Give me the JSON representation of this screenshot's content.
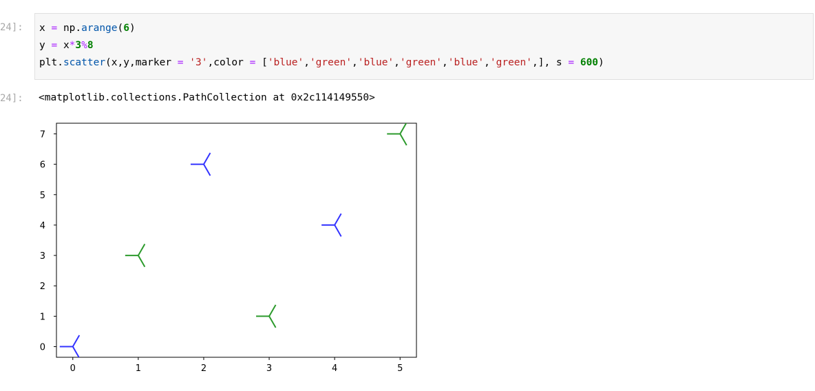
{
  "cell": {
    "in_prompt": "24]:",
    "out_prompt": "24]:",
    "code": {
      "line1": [
        "x",
        " = ",
        "np",
        ".",
        "arange",
        "(",
        "6",
        ")"
      ],
      "line2": [
        "y",
        " = ",
        "x",
        "*",
        "3",
        "%",
        "8"
      ],
      "line3": [
        "plt",
        ".",
        "scatter",
        "(x,y,marker",
        " = ",
        "'3'",
        ",color",
        " = ",
        "[",
        "'blue'",
        ",",
        "'green'",
        ",",
        "'blue'",
        ",",
        "'green'",
        ",",
        "'blue'",
        ",",
        "'green'",
        ",], s",
        " = ",
        "600",
        ")"
      ]
    },
    "output_text": "<matplotlib.collections.PathCollection at 0x2c114149550>"
  },
  "chart_data": {
    "type": "scatter",
    "marker": "3 (tri_left)",
    "x": [
      0,
      1,
      2,
      3,
      4,
      5
    ],
    "y": [
      0,
      3,
      6,
      1,
      4,
      7
    ],
    "colors": [
      "blue",
      "green",
      "blue",
      "green",
      "blue",
      "green"
    ],
    "color_hex": {
      "blue": "#3333ff",
      "green": "#2c9a2c"
    },
    "xticks": [
      "0",
      "1",
      "2",
      "3",
      "4",
      "5"
    ],
    "yticks": [
      "0",
      "1",
      "2",
      "3",
      "4",
      "5",
      "6",
      "7"
    ],
    "xlim": [
      -0.25,
      5.25
    ],
    "ylim": [
      -0.35,
      7.35
    ],
    "grid": false,
    "title": "",
    "xlabel": "",
    "ylabel": ""
  }
}
